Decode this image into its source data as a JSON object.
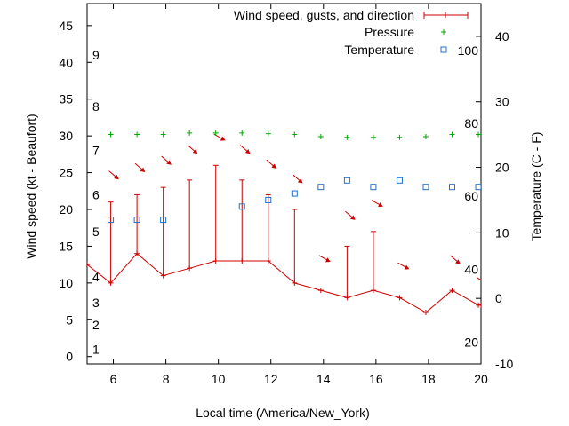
{
  "chart_data": {
    "type": "line",
    "xlabel": "Local time (America/New_York)",
    "ylabel_left": "Wind speed (kt - Beaufort)",
    "ylabel_right": "Temperature (C - F)",
    "xlim": [
      5,
      20
    ],
    "ylim_left": [
      -1,
      48
    ],
    "ylim_right": [
      -10,
      45
    ],
    "x_ticks": [
      6,
      8,
      10,
      12,
      14,
      16,
      18,
      20
    ],
    "y_ticks_left": [
      0,
      5,
      10,
      15,
      20,
      25,
      30,
      35,
      40,
      45
    ],
    "y_ticks_right": [
      -10,
      0,
      10,
      20,
      30,
      40
    ],
    "beaufort_labels": [
      {
        "label": "1",
        "value": 1
      },
      {
        "label": "2",
        "value": 4.3
      },
      {
        "label": "3",
        "value": 7.3
      },
      {
        "label": "4",
        "value": 10.8
      },
      {
        "label": "5",
        "value": 17
      },
      {
        "label": "6",
        "value": 22
      },
      {
        "label": "7",
        "value": 28
      },
      {
        "label": "8",
        "value": 34
      },
      {
        "label": "9",
        "value": 41
      }
    ],
    "fahrenheit_labels": [
      {
        "label": "20",
        "value": -6.7
      },
      {
        "label": "40",
        "value": 4.4
      },
      {
        "label": "60",
        "value": 15.6
      },
      {
        "label": "80",
        "value": 26.7
      },
      {
        "label": "100",
        "value": 37.8
      }
    ],
    "legend_position": "top-right",
    "series": [
      {
        "name": "Wind speed, gusts, and direction",
        "color": "#cc0000",
        "x": [
          5,
          5.9,
          6.9,
          7.9,
          8.9,
          9.9,
          10.9,
          11.9,
          12.9,
          13.9,
          14.9,
          15.9,
          16.9,
          17.9,
          18.9,
          19.9,
          20
        ],
        "speed": [
          12.5,
          10,
          14,
          11,
          12,
          13,
          13,
          13,
          10,
          9,
          8,
          9,
          8,
          6,
          9,
          7,
          7
        ],
        "gust": [
          null,
          21,
          22,
          23,
          24,
          26,
          24,
          22,
          20,
          null,
          15,
          17,
          null,
          null,
          null,
          null,
          null
        ],
        "direction_arrows": [
          {
            "x": 5.9,
            "y": 25,
            "dir": 315
          },
          {
            "x": 6.9,
            "y": 26,
            "dir": 315
          },
          {
            "x": 7.9,
            "y": 27,
            "dir": 315
          },
          {
            "x": 8.9,
            "y": 28.5,
            "dir": 315
          },
          {
            "x": 9.9,
            "y": 30,
            "dir": 300
          },
          {
            "x": 10.9,
            "y": 28.5,
            "dir": 315
          },
          {
            "x": 11.9,
            "y": 26.5,
            "dir": 315
          },
          {
            "x": 12.9,
            "y": 24.5,
            "dir": 315
          },
          {
            "x": 13.9,
            "y": 13.5,
            "dir": 300
          },
          {
            "x": 14.9,
            "y": 19.5,
            "dir": 315
          },
          {
            "x": 15.9,
            "y": 21,
            "dir": 300
          },
          {
            "x": 16.9,
            "y": 12.5,
            "dir": 300
          },
          {
            "x": 18.9,
            "y": 13.5,
            "dir": 315
          },
          {
            "x": 19.9,
            "y": 10.5,
            "dir": 300
          }
        ]
      },
      {
        "name": "Pressure",
        "color": "#00aa00",
        "x": [
          5.9,
          6.9,
          7.9,
          8.9,
          9.9,
          10.9,
          11.9,
          12.9,
          13.9,
          14.9,
          15.9,
          16.9,
          17.9,
          18.9,
          19.9
        ],
        "y": [
          30.2,
          30.2,
          30.2,
          30.4,
          30.4,
          30.4,
          30.3,
          30.2,
          29.9,
          29.8,
          29.8,
          29.8,
          29.9,
          30.2,
          30.2
        ]
      },
      {
        "name": "Temperature",
        "color": "#1f6fd0",
        "x": [
          5.9,
          6.9,
          7.9,
          10.9,
          11.9,
          12.9,
          13.9,
          14.9,
          15.9,
          16.9,
          17.9,
          18.9,
          19.9
        ],
        "y": [
          12,
          12,
          12,
          14,
          15,
          16,
          17,
          18,
          17,
          18,
          17,
          17,
          17
        ]
      }
    ]
  }
}
